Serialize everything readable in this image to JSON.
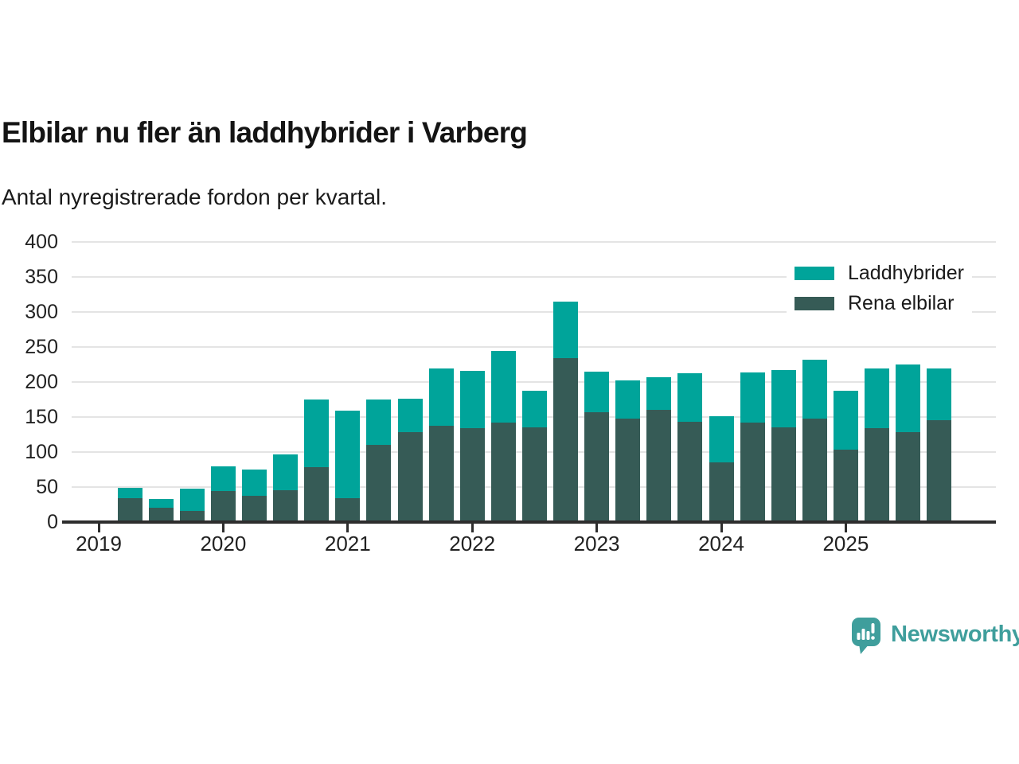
{
  "chart_data": {
    "type": "bar",
    "stacked": true,
    "title": "Elbilar nu fler än laddhybrider i Varberg",
    "subtitle": "Antal nyregistrerade fordon per kvartal.",
    "x": [
      "2019 Q2",
      "2019 Q3",
      "2019 Q4",
      "2020 Q1",
      "2020 Q2",
      "2020 Q3",
      "2020 Q4",
      "2021 Q1",
      "2021 Q2",
      "2021 Q3",
      "2021 Q4",
      "2022 Q1",
      "2022 Q2",
      "2022 Q3",
      "2022 Q4",
      "2023 Q1",
      "2023 Q2",
      "2023 Q3",
      "2023 Q4",
      "2024 Q1",
      "2024 Q2",
      "2024 Q3",
      "2024 Q4",
      "2025 Q1",
      "2025 Q2",
      "2025 Q3",
      "2025 Q4"
    ],
    "series": [
      {
        "name": "Laddhybrider",
        "color": "#00a49a",
        "values": [
          14,
          12,
          32,
          35,
          38,
          51,
          96,
          125,
          65,
          48,
          82,
          81,
          103,
          52,
          81,
          58,
          55,
          46,
          69,
          66,
          71,
          81,
          84,
          84,
          85,
          96,
          74
        ]
      },
      {
        "name": "Rena elbilar",
        "color": "#365b56",
        "values": [
          34,
          20,
          15,
          44,
          37,
          45,
          78,
          34,
          110,
          128,
          137,
          134,
          141,
          135,
          233,
          156,
          147,
          160,
          143,
          85,
          142,
          135,
          147,
          103,
          134,
          128,
          145
        ]
      }
    ],
    "ylim": [
      0,
      400
    ],
    "yticks": [
      0,
      50,
      100,
      150,
      200,
      250,
      300,
      350,
      400
    ],
    "xticks": [
      "2019",
      "2020",
      "2021",
      "2022",
      "2023",
      "2024",
      "2025"
    ],
    "grid": true,
    "legend_position": "top-right"
  },
  "branding": {
    "logo_text": "Newsworthy",
    "logo_color": "#3f9e9c"
  }
}
